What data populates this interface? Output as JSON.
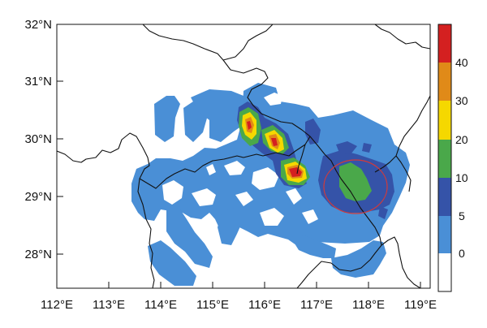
{
  "map": {
    "y_ticks": [
      "32°N",
      "31°N",
      "30°N",
      "29°N",
      "28°N"
    ],
    "x_ticks": [
      "112°E",
      "113°E",
      "114°E",
      "115°E",
      "116°E",
      "117°E",
      "118°E",
      "119°E"
    ]
  },
  "colorbar": {
    "levels": [
      "0",
      "5",
      "10",
      "20",
      "30",
      "40"
    ],
    "colors": [
      "#ffffff",
      "#4a8fd6",
      "#3553a8",
      "#4aa84a",
      "#f5d800",
      "#e08a18",
      "#d42020"
    ]
  },
  "annotation": {
    "highlight_color": "#d23a3a"
  }
}
